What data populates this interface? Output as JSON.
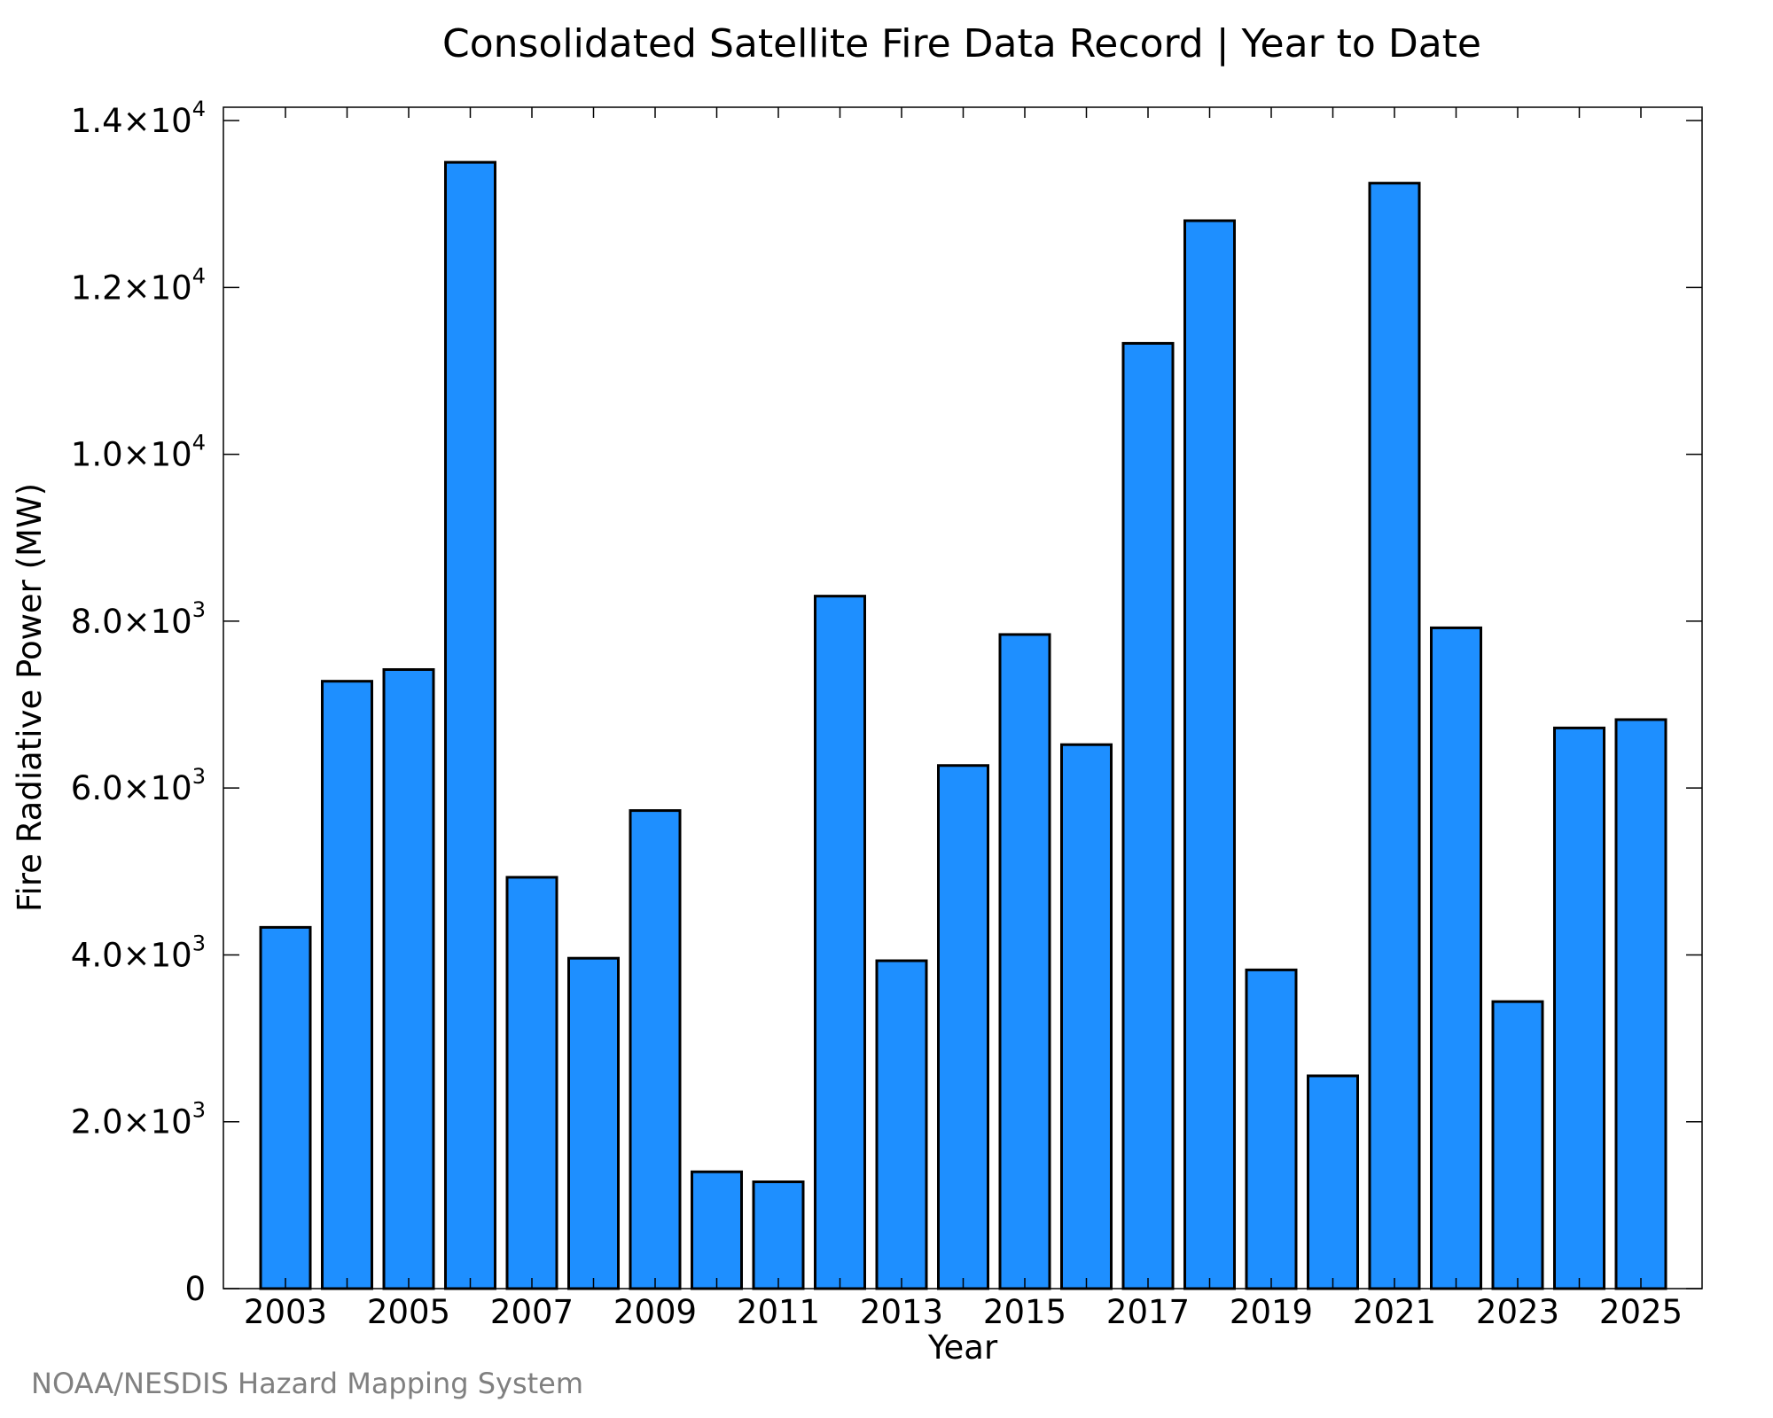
{
  "chart_data": {
    "type": "bar",
    "title": "Consolidated Satellite Fire Data Record | Year to Date",
    "xlabel": "Year",
    "ylabel": "Fire Radiative Power (MW)",
    "categories": [
      "2003",
      "2004",
      "2005",
      "2006",
      "2007",
      "2008",
      "2009",
      "2010",
      "2011",
      "2012",
      "2013",
      "2014",
      "2015",
      "2016",
      "2017",
      "2018",
      "2019",
      "2020",
      "2021",
      "2022",
      "2023",
      "2024",
      "2025"
    ],
    "values": [
      4330,
      7280,
      7420,
      13500,
      4930,
      3960,
      5730,
      1400,
      1280,
      8300,
      3930,
      6270,
      7840,
      6520,
      11330,
      12800,
      3820,
      2550,
      13250,
      7920,
      3440,
      6720,
      6820
    ],
    "ylim": [
      0,
      14160
    ],
    "y_ticks": [
      {
        "value": 0,
        "mantissa": "0",
        "exponent": ""
      },
      {
        "value": 2000,
        "mantissa": "2.0×10",
        "exponent": "3"
      },
      {
        "value": 4000,
        "mantissa": "4.0×10",
        "exponent": "3"
      },
      {
        "value": 6000,
        "mantissa": "6.0×10",
        "exponent": "3"
      },
      {
        "value": 8000,
        "mantissa": "8.0×10",
        "exponent": "3"
      },
      {
        "value": 10000,
        "mantissa": "1.0×10",
        "exponent": "4"
      },
      {
        "value": 12000,
        "mantissa": "1.2×10",
        "exponent": "4"
      },
      {
        "value": 14000,
        "mantissa": "1.4×10",
        "exponent": "4"
      }
    ],
    "x_tick_labels": [
      "2003",
      "2005",
      "2007",
      "2009",
      "2011",
      "2013",
      "2015",
      "2017",
      "2019",
      "2021",
      "2023",
      "2025"
    ],
    "bar_color": "#1e8fff",
    "grid": false,
    "legend": "none"
  },
  "credit": "NOAA/NESDIS Hazard Mapping System"
}
